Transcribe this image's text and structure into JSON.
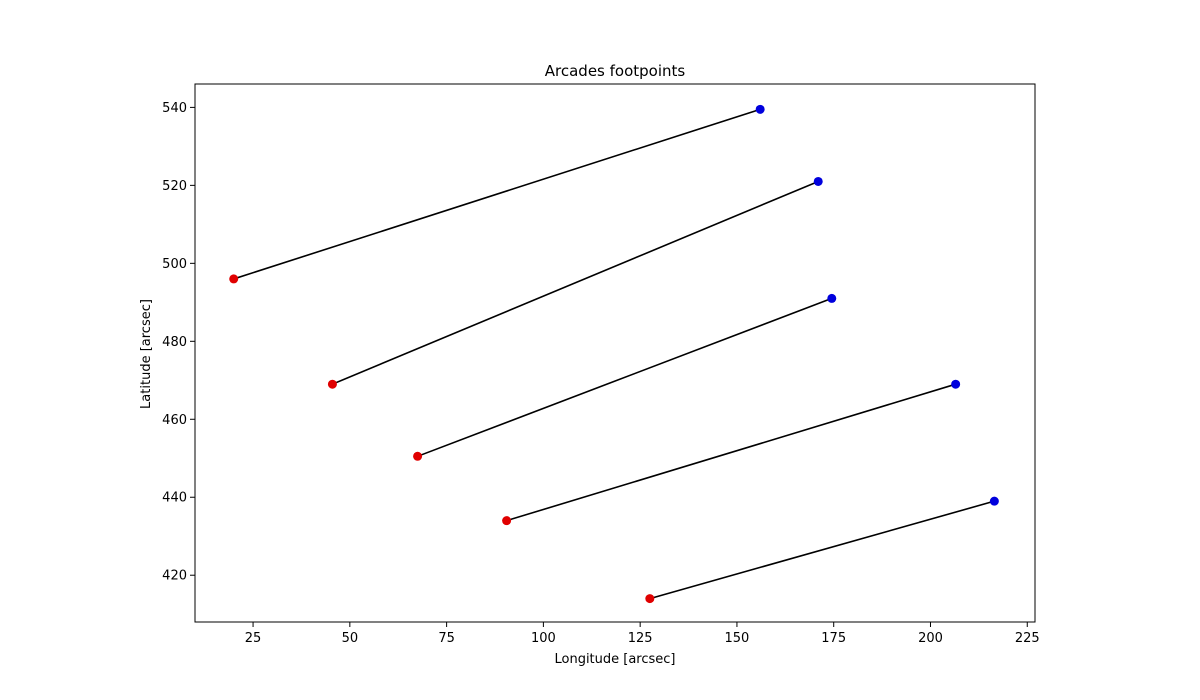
{
  "chart_data": {
    "type": "scatter",
    "title": "Arcades footpoints",
    "xlabel": "Longitude [arcsec]",
    "ylabel": "Latitude [arcsec]",
    "xlim": [
      10,
      227
    ],
    "ylim": [
      408,
      546
    ],
    "xticks": [
      25,
      50,
      75,
      100,
      125,
      150,
      175,
      200,
      225
    ],
    "yticks": [
      420,
      440,
      460,
      480,
      500,
      520,
      540
    ],
    "grid": false,
    "legend": "none",
    "colors": {
      "start": "#e00000",
      "end": "#0000dd",
      "line": "#000000"
    },
    "segments": [
      {
        "x": [
          20,
          156
        ],
        "y": [
          496,
          539.5
        ]
      },
      {
        "x": [
          45.5,
          171
        ],
        "y": [
          469,
          521
        ]
      },
      {
        "x": [
          67.5,
          174.5
        ],
        "y": [
          450.5,
          491
        ]
      },
      {
        "x": [
          90.5,
          206.5
        ],
        "y": [
          434,
          469
        ]
      },
      {
        "x": [
          127.5,
          216.5
        ],
        "y": [
          414,
          439
        ]
      }
    ]
  }
}
